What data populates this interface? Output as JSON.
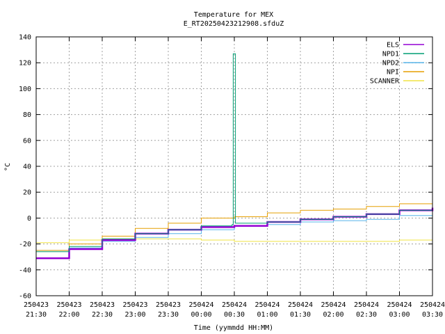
{
  "chart_data": {
    "type": "line",
    "title": "Temperature for MEX",
    "subtitle": "E_RT20250423212908.sfduZ",
    "xlabel": "Time (yymmdd HH:MM)",
    "ylabel": "°C",
    "ylim": [
      -60,
      140
    ],
    "yticks": [
      -60,
      -40,
      -20,
      0,
      20,
      40,
      60,
      80,
      100,
      120,
      140
    ],
    "xlim_minutes": [
      0,
      360
    ],
    "xticks": [
      {
        "date": "250423",
        "time": "21:30"
      },
      {
        "date": "250423",
        "time": "22:00"
      },
      {
        "date": "250423",
        "time": "22:30"
      },
      {
        "date": "250423",
        "time": "23:00"
      },
      {
        "date": "250423",
        "time": "23:30"
      },
      {
        "date": "250424",
        "time": "00:00"
      },
      {
        "date": "250424",
        "time": "00:30"
      },
      {
        "date": "250424",
        "time": "01:00"
      },
      {
        "date": "250424",
        "time": "01:30"
      },
      {
        "date": "250424",
        "time": "02:00"
      },
      {
        "date": "250424",
        "time": "02:30"
      },
      {
        "date": "250424",
        "time": "03:00"
      },
      {
        "date": "250424",
        "time": "03:30"
      }
    ],
    "grid": true,
    "legend_position": "top-right",
    "series": [
      {
        "name": "ELS",
        "color": "#9400d3",
        "x": [
          0,
          30,
          60,
          90,
          120,
          150,
          180,
          210,
          240,
          270,
          300,
          330,
          360
        ],
        "y": [
          -31,
          -24,
          -17,
          -12,
          -9,
          -7,
          -6,
          -3,
          -1,
          1,
          3,
          6,
          8
        ]
      },
      {
        "name": "NPD1",
        "color": "#009e73",
        "x": [
          0,
          30,
          60,
          90,
          120,
          150,
          178,
          179,
          180,
          181,
          182,
          210,
          240,
          270,
          300,
          330,
          360
        ],
        "y": [
          -26,
          -22,
          -16,
          -12,
          -9,
          -6,
          -5,
          127,
          127,
          -4,
          -4,
          -3,
          -1,
          1,
          3,
          6,
          7
        ]
      },
      {
        "name": "NPD2",
        "color": "#56b4e9",
        "x": [
          0,
          30,
          60,
          90,
          120,
          150,
          180,
          210,
          240,
          270,
          300,
          330,
          360
        ],
        "y": [
          -25,
          -23,
          -18,
          -15,
          -12,
          -9,
          -6,
          -5,
          -3,
          -2,
          -1,
          2,
          5
        ]
      },
      {
        "name": "NPI",
        "color": "#e69f00",
        "x": [
          0,
          30,
          60,
          90,
          120,
          150,
          180,
          210,
          240,
          270,
          300,
          330,
          360
        ],
        "y": [
          -25,
          -20,
          -14,
          -8,
          -4,
          0,
          1,
          4,
          6,
          7,
          9,
          11,
          15
        ]
      },
      {
        "name": "SCANNER",
        "color": "#f0e442",
        "x": [
          0,
          30,
          60,
          90,
          120,
          150,
          180,
          210,
          240,
          270,
          300,
          330,
          360
        ],
        "y": [
          -19,
          -17,
          -16,
          -16,
          -16,
          -17,
          -18,
          -18,
          -18,
          -18,
          -18,
          -17,
          -13
        ]
      }
    ]
  }
}
